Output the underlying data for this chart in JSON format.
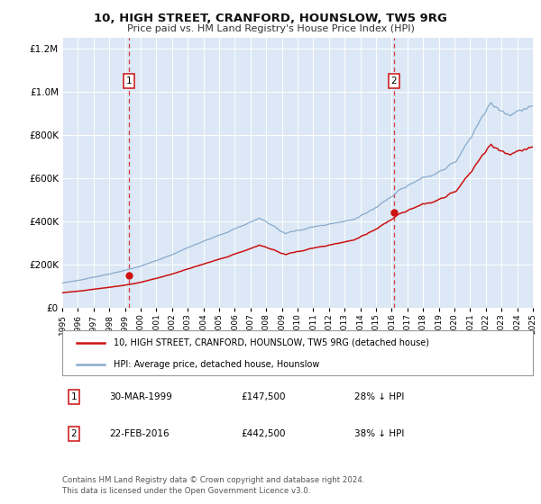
{
  "title": "10, HIGH STREET, CRANFORD, HOUNSLOW, TW5 9RG",
  "subtitle": "Price paid vs. HM Land Registry's House Price Index (HPI)",
  "background_color": "#ffffff",
  "plot_bg_color": "#dce8f5",
  "grid_color": "#c8d8e8",
  "legend_label_red": "10, HIGH STREET, CRANFORD, HOUNSLOW, TW5 9RG (detached house)",
  "legend_label_blue": "HPI: Average price, detached house, Hounslow",
  "red_color": "#cc1111",
  "blue_color": "#88aacc",
  "sale1_date": "30-MAR-1999",
  "sale1_price": 147500,
  "sale1_pct": "28% ↓ HPI",
  "sale1_x": 1999.24,
  "sale2_date": "22-FEB-2016",
  "sale2_price": 442500,
  "sale2_pct": "38% ↓ HPI",
  "sale2_x": 2016.13,
  "ylim_max": 1250000,
  "xlim_start": 1995,
  "xlim_end": 2025,
  "footer_text": "Contains HM Land Registry data © Crown copyright and database right 2024.\nThis data is licensed under the Open Government Licence v3.0."
}
